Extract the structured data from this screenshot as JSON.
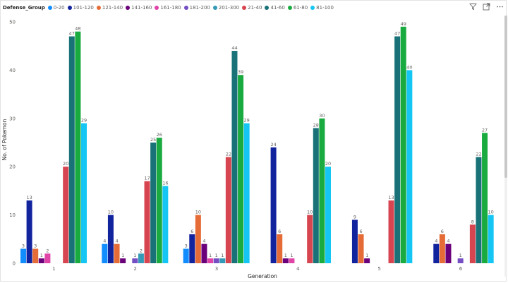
{
  "legend_title": "Defense_Group",
  "colors": {
    "0-20": "#118DFF",
    "101-120": "#12239E",
    "121-140": "#E66C37",
    "141-160": "#6B007B",
    "161-180": "#E044A7",
    "181-200": "#744EC2",
    "201-300": "#3599B8",
    "21-40": "#D64550",
    "41-60": "#197278",
    "61-80": "#1AAB40",
    "81-100": "#15C6F4"
  },
  "toolbar": {
    "filter_icon": "filter-icon",
    "focus_icon": "focus-mode-icon",
    "more_icon": "more-options-icon"
  },
  "chart_data": {
    "type": "bar",
    "categories": [
      "1",
      "2",
      "3",
      "4",
      "5",
      "6"
    ],
    "xlabel": "Generation",
    "ylabel": "No. of Pokemon",
    "ylim": [
      0,
      50
    ],
    "yticks": [
      0,
      10,
      20,
      30,
      40,
      50
    ],
    "grid": false,
    "legend_position": "top-left",
    "series": [
      {
        "name": "0-20",
        "values": [
          3,
          4,
          3,
          null,
          null,
          null
        ]
      },
      {
        "name": "101-120",
        "values": [
          13,
          10,
          6,
          24,
          9,
          4
        ]
      },
      {
        "name": "121-140",
        "values": [
          3,
          4,
          10,
          6,
          6,
          6
        ]
      },
      {
        "name": "141-160",
        "values": [
          1,
          1,
          4,
          1,
          1,
          4
        ]
      },
      {
        "name": "161-180",
        "values": [
          2,
          null,
          1,
          1,
          null,
          null
        ]
      },
      {
        "name": "181-200",
        "values": [
          null,
          1,
          1,
          null,
          null,
          1
        ]
      },
      {
        "name": "201-300",
        "values": [
          null,
          2,
          1,
          null,
          null,
          null
        ]
      },
      {
        "name": "21-40",
        "values": [
          20,
          17,
          22,
          10,
          13,
          8
        ]
      },
      {
        "name": "41-60",
        "values": [
          47,
          25,
          44,
          28,
          47,
          22
        ]
      },
      {
        "name": "61-80",
        "values": [
          48,
          26,
          39,
          30,
          49,
          27
        ]
      },
      {
        "name": "81-100",
        "values": [
          29,
          16,
          29,
          20,
          40,
          10
        ]
      }
    ]
  }
}
